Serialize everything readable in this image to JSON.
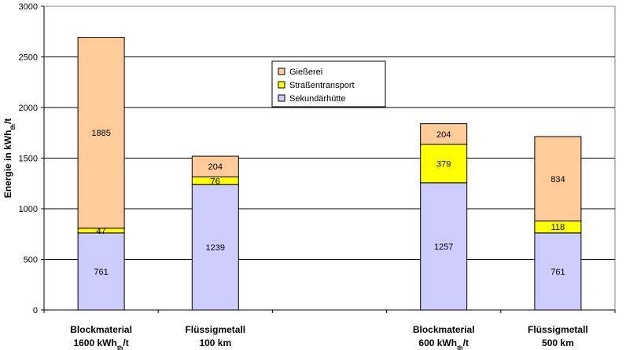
{
  "chart_data": {
    "type": "bar",
    "stacked": true,
    "ylabel": "Energie in kWh",
    "ylabel_sub": "th",
    "ylabel_suffix": "/t",
    "ylim": [
      0,
      3000
    ],
    "yticks": [
      "0",
      "500",
      "1000",
      "1500",
      "2000",
      "2500",
      "3000"
    ],
    "grid": true,
    "legend_position": "upper-center",
    "categories": [
      {
        "line1": "Blockmaterial",
        "line2_pre": "1600 kWh",
        "line2_sub": "th",
        "line2_post": "/t",
        "slot": 0
      },
      {
        "line1": "Flüssigmetall",
        "line2_pre": "100 km",
        "line2_sub": "",
        "line2_post": "",
        "slot": 1
      },
      {
        "line1": "Blockmaterial",
        "line2_pre": "600 kWh",
        "line2_sub": "th",
        "line2_post": "/t",
        "slot": 3
      },
      {
        "line1": "Flüssigmetall",
        "line2_pre": "500 km",
        "line2_sub": "",
        "line2_post": "",
        "slot": 4
      }
    ],
    "series": [
      {
        "name": "Sekundärhütte",
        "color": "#ccccff",
        "values": [
          761,
          1239,
          1257,
          761
        ]
      },
      {
        "name": "Straßentransport",
        "color": "#ffff00",
        "values": [
          47,
          76,
          379,
          118
        ]
      },
      {
        "name": "Gießerei",
        "color": "#ffcc99",
        "values": [
          1885,
          204,
          204,
          834
        ]
      }
    ],
    "legend_order": [
      "Gießerei",
      "Straßentransport",
      "Sekundärhütte"
    ]
  }
}
